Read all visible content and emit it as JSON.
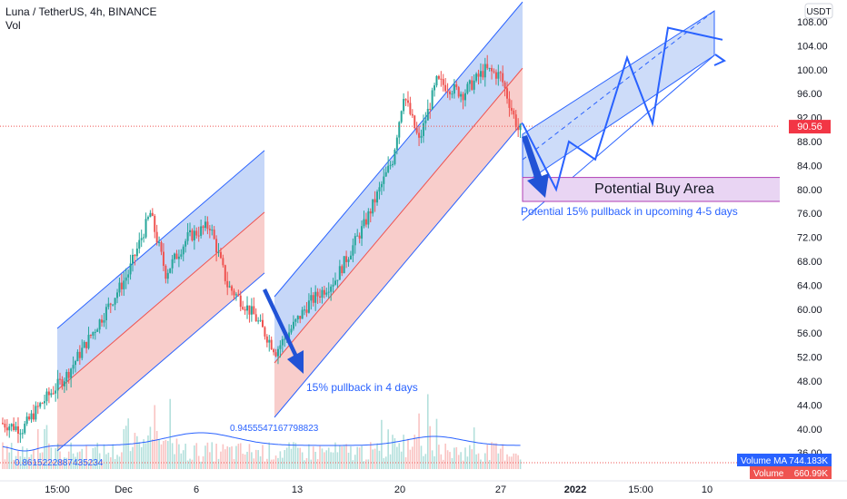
{
  "header": {
    "title": "Luna / TetherUS, 4h, BINANCE",
    "sub": "Vol"
  },
  "price_scale": {
    "currency": "USDT",
    "ticks": [
      "108.00",
      "104.00",
      "100.00",
      "96.00",
      "92.00",
      "88.00",
      "84.00",
      "80.00",
      "76.00",
      "72.00",
      "68.00",
      "64.00",
      "60.00",
      "56.00",
      "52.00",
      "48.00",
      "44.00",
      "40.00",
      "36.00"
    ],
    "current_price": "90.56",
    "current_price_color": "#f23645"
  },
  "time_scale": {
    "labels": [
      "15:00",
      "Dec",
      "6",
      "13",
      "20",
      "27",
      "2022",
      "15:00",
      "10"
    ]
  },
  "volume_panel": {
    "ma_label": "Volume MA",
    "ma_value": "744.183K",
    "vol_label": "Volume",
    "vol_value": "660.99K",
    "ma_left_value": "0.8615222887435234",
    "ma_mid_value": "0.9455547167798823"
  },
  "annotations": {
    "buy_area": "Potential Buy Area",
    "pullback_future": "Potential 15% pullback in upcoming 4-5 days",
    "pullback_past": "15% pullback in 4 days"
  },
  "colors": {
    "up": "#26a69a",
    "down": "#ef5350",
    "channel_blue": "#bcd0f7",
    "channel_red": "#f7c4c2",
    "channel_line": "#2962ff",
    "arrow": "#2153d6",
    "buy_area_fill": "#e9d5f3",
    "buy_area_border": "#b040b6",
    "ma_line": "#2962ff"
  },
  "chart_data": {
    "type": "candlestick",
    "symbol": "Luna / TetherUS",
    "interval": "4h",
    "exchange": "BINANCE",
    "y_range": [
      34,
      112
    ],
    "keypoints": [
      {
        "t": 0,
        "p": 41
      },
      {
        "t": 10,
        "p": 40
      },
      {
        "t": 18,
        "p": 44
      },
      {
        "t": 30,
        "p": 49
      },
      {
        "t": 45,
        "p": 58
      },
      {
        "t": 58,
        "p": 66
      },
      {
        "t": 68,
        "p": 76
      },
      {
        "t": 75,
        "p": 66
      },
      {
        "t": 85,
        "p": 72
      },
      {
        "t": 95,
        "p": 74
      },
      {
        "t": 103,
        "p": 64
      },
      {
        "t": 115,
        "p": 59
      },
      {
        "t": 125,
        "p": 53
      },
      {
        "t": 140,
        "p": 61
      },
      {
        "t": 152,
        "p": 65
      },
      {
        "t": 165,
        "p": 74
      },
      {
        "t": 178,
        "p": 85
      },
      {
        "t": 183,
        "p": 96
      },
      {
        "t": 190,
        "p": 88
      },
      {
        "t": 198,
        "p": 98
      },
      {
        "t": 210,
        "p": 96
      },
      {
        "t": 220,
        "p": 100
      },
      {
        "t": 227,
        "p": 99
      },
      {
        "t": 235,
        "p": 90
      }
    ],
    "last_close": 90.56,
    "projection_zigzag": [
      91,
      80,
      88,
      85,
      102,
      91,
      107,
      105
    ],
    "buy_area_range": [
      78,
      82
    ]
  }
}
